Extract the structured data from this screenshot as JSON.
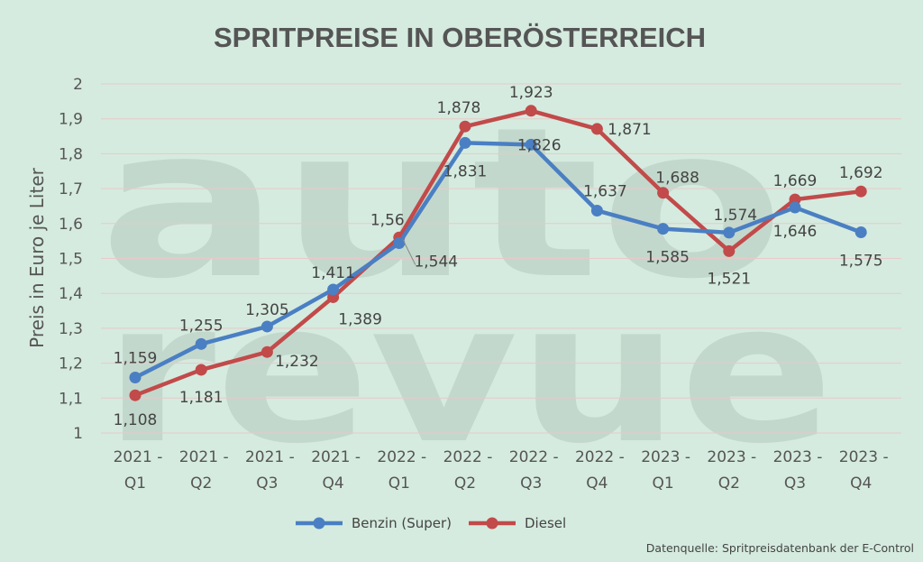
{
  "chart_data": {
    "type": "line",
    "title": "SPRITPREISE IN OBERÖSTERREICH",
    "ylabel": "Preis in Euro je Liter",
    "xlabel": "",
    "ylim": [
      1,
      2
    ],
    "yticks": [
      "1",
      "1,1",
      "1,2",
      "1,3",
      "1,4",
      "1,5",
      "1,6",
      "1,7",
      "1,8",
      "1,9",
      "2"
    ],
    "categories": [
      [
        "2021 -",
        "Q1"
      ],
      [
        "2021 -",
        "Q2"
      ],
      [
        "2021 -",
        "Q3"
      ],
      [
        "2021 -",
        "Q4"
      ],
      [
        "2022 -",
        "Q1"
      ],
      [
        "2022 -",
        "Q2"
      ],
      [
        "2022 -",
        "Q3"
      ],
      [
        "2022 -",
        "Q4"
      ],
      [
        "2023 -",
        "Q1"
      ],
      [
        "2023 -",
        "Q2"
      ],
      [
        "2023 -",
        "Q3"
      ],
      [
        "2023 -",
        "Q4"
      ]
    ],
    "series": [
      {
        "name": "Benzin (Super)",
        "color": "#4a7fc3",
        "values": [
          1.159,
          1.255,
          1.305,
          1.411,
          1.544,
          1.831,
          1.826,
          1.637,
          1.585,
          1.574,
          1.646,
          1.575
        ],
        "labels": [
          "1,159",
          "1,255",
          "1,305",
          "1,411",
          "1,544",
          "1,831",
          "1,826",
          "1,637",
          "1,585",
          "1,574",
          "1,646",
          "1,575"
        ]
      },
      {
        "name": "Diesel",
        "color": "#c24a4a",
        "values": [
          1.108,
          1.181,
          1.232,
          1.389,
          1.56,
          1.878,
          1.923,
          1.871,
          1.688,
          1.521,
          1.669,
          1.692
        ],
        "labels": [
          "1,108",
          "1,181",
          "1,232",
          "1,389",
          "1,56",
          "1,878",
          "1,923",
          "1,871",
          "1,688",
          "1,521",
          "1,669",
          "1,692"
        ]
      }
    ],
    "grid": true,
    "legend_position": "bottom",
    "source": "Datenquelle: Spritpreisdatenbank der E-Control"
  },
  "watermark": {
    "line1": "auto",
    "line2": "revue"
  },
  "colors": {
    "background": "#d5ebdf",
    "grid": "#e8c9c9",
    "text": "#555555"
  }
}
